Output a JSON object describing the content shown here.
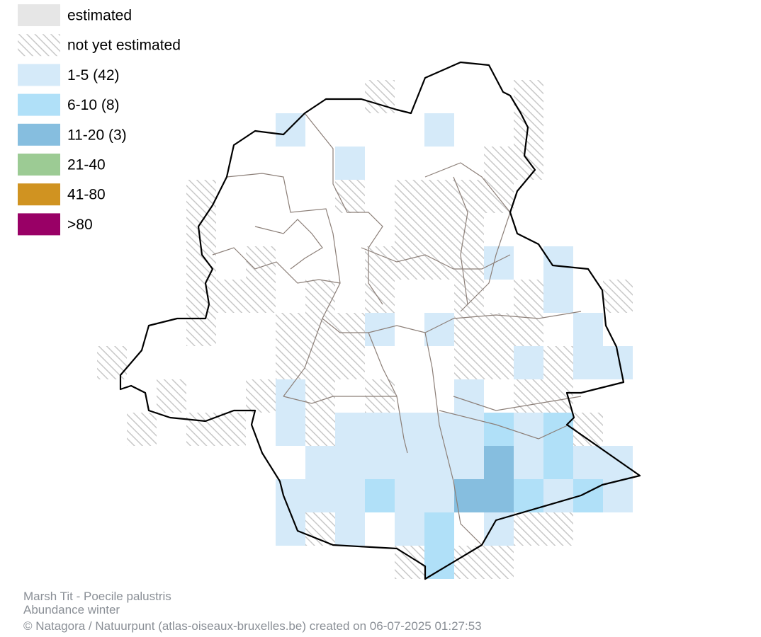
{
  "map": {
    "legend": [
      {
        "label": "estimated",
        "color": "#e6e6e6"
      },
      {
        "label": "not yet estimated",
        "pattern": "hatch",
        "color": "#c8c8c8"
      },
      {
        "label": "1-5 (42)",
        "color": "#d5eaf9"
      },
      {
        "label": "6-10 (8)",
        "color": "#b0e0f8"
      },
      {
        "label": "11-20 (3)",
        "color": "#86bedf"
      },
      {
        "label": "21-40",
        "color": "#9ccb94"
      },
      {
        "label": "41-80",
        "color": "#d09321"
      },
      {
        "label": ">80",
        "color": "#990066"
      }
    ],
    "caption": {
      "species": "Marsh Tit - Poecile palustris",
      "subtitle": "Abundance winter",
      "credit": "© Natagora / Natuurpunt (atlas-oiseaux-bruxelles.be) created on 06-07-2025 01:27:53"
    }
  }
}
